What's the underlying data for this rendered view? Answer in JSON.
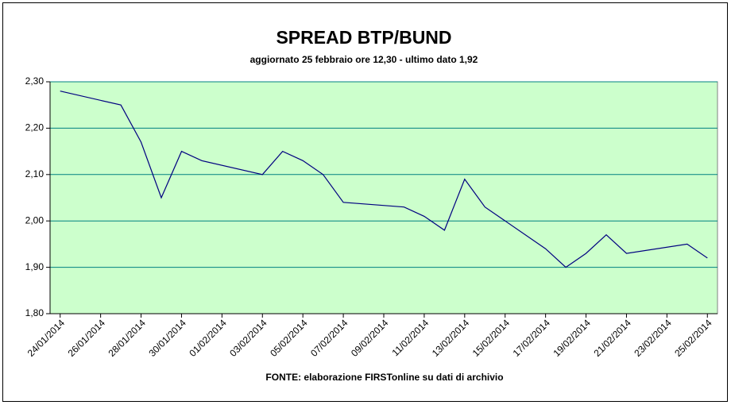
{
  "chart_data": {
    "type": "line",
    "title": "SPREAD BTP/BUND",
    "subtitle": "aggiornato 25 febbraio ore 12,30 - ultimo dato 1,92",
    "source": "FONTE:  elaborazione FIRSTonline su dati di archivio",
    "x": [
      "24/01/2014",
      "27/01/2014",
      "28/01/2014",
      "29/01/2014",
      "30/01/2014",
      "31/01/2014",
      "03/02/2014",
      "04/02/2014",
      "05/02/2014",
      "06/02/2014",
      "07/02/2014",
      "10/02/2014",
      "11/02/2014",
      "12/02/2014",
      "13/02/2014",
      "14/02/2014",
      "17/02/2014",
      "18/02/2014",
      "19/02/2014",
      "20/02/2014",
      "21/02/2014",
      "24/02/2014",
      "25/02/2014"
    ],
    "series": [
      {
        "name": "Spread",
        "color": "#000080",
        "values": [
          2.28,
          2.25,
          2.17,
          2.05,
          2.15,
          2.13,
          2.1,
          2.15,
          2.13,
          2.1,
          2.04,
          2.03,
          2.01,
          1.98,
          2.09,
          2.03,
          1.94,
          1.9,
          1.93,
          1.97,
          1.93,
          1.95,
          1.92
        ]
      }
    ],
    "xlim": [
      "24/01/2014",
      "26/02/2014"
    ],
    "xticks": [
      "24/01/2014",
      "26/01/2014",
      "28/01/2014",
      "30/01/2014",
      "01/02/2014",
      "03/02/2014",
      "05/02/2014",
      "07/02/2014",
      "09/02/2014",
      "11/02/2014",
      "13/02/2014",
      "15/02/2014",
      "17/02/2014",
      "19/02/2014",
      "21/02/2014",
      "23/02/2014",
      "25/02/2014"
    ],
    "ylim": [
      1.8,
      2.3
    ],
    "yticks": [
      {
        "value": 1.8,
        "label": "1,80"
      },
      {
        "value": 1.9,
        "label": "1,90"
      },
      {
        "value": 2.0,
        "label": "2,00"
      },
      {
        "value": 2.1,
        "label": "2,10"
      },
      {
        "value": 2.2,
        "label": "2,20"
      },
      {
        "value": 2.3,
        "label": "2,30"
      }
    ],
    "grid": true,
    "plot_background": "#ccffcc",
    "grid_color": "#008080"
  }
}
